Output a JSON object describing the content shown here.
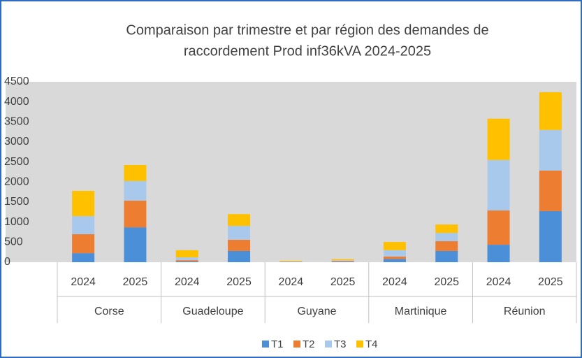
{
  "chart_data": {
    "type": "stacked_bar",
    "title": [
      "Comparaison par trimestre et par région des demandes de",
      "raccordement Prod inf36kVA 2024-2025"
    ],
    "categories": [
      "2024",
      "2025",
      "2024",
      "2025",
      "2024",
      "2025",
      "2024",
      "2025",
      "2024",
      "2025"
    ],
    "groups": [
      "Corse",
      "Guadeloupe",
      "Guyane",
      "Martinique",
      "Réunion"
    ],
    "series": [
      {
        "name": "T1",
        "color": "#4a8fd8",
        "values": [
          225,
          870,
          20,
          280,
          5,
          10,
          80,
          280,
          435,
          1275
        ]
      },
      {
        "name": "T2",
        "color": "#ed7d31",
        "values": [
          475,
          665,
          30,
          280,
          5,
          20,
          60,
          245,
          855,
          1010
        ]
      },
      {
        "name": "T3",
        "color": "#a9c9ec",
        "values": [
          450,
          490,
          70,
          345,
          10,
          20,
          160,
          205,
          1260,
          1015
        ]
      },
      {
        "name": "T4",
        "color": "#ffc000",
        "values": [
          630,
          400,
          180,
          295,
          15,
          25,
          205,
          210,
          1030,
          940
        ]
      }
    ],
    "ylim": [
      0,
      4500
    ],
    "yticks": [
      0,
      500,
      1000,
      1500,
      2000,
      2500,
      3000,
      3500,
      4000,
      4500
    ],
    "grid": false,
    "legend": "bottom"
  }
}
